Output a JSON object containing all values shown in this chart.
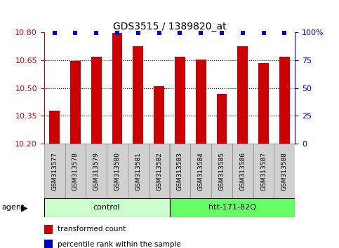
{
  "title": "GDS3515 / 1389820_at",
  "samples": [
    "GSM313577",
    "GSM313578",
    "GSM313579",
    "GSM313580",
    "GSM313581",
    "GSM313582",
    "GSM313583",
    "GSM313584",
    "GSM313585",
    "GSM313586",
    "GSM313587",
    "GSM313588"
  ],
  "values": [
    10.38,
    10.645,
    10.67,
    10.795,
    10.725,
    10.51,
    10.67,
    10.655,
    10.47,
    10.725,
    10.635,
    10.67
  ],
  "percentile_values": [
    100,
    100,
    100,
    100,
    100,
    100,
    100,
    100,
    100,
    100,
    100,
    100
  ],
  "bar_color": "#cc0000",
  "dot_color": "#0000cc",
  "ylim_left": [
    10.2,
    10.8
  ],
  "ylim_right": [
    0,
    100
  ],
  "yticks_left": [
    10.2,
    10.35,
    10.5,
    10.65,
    10.8
  ],
  "yticks_right": [
    0,
    25,
    50,
    75,
    100
  ],
  "ytick_labels_right": [
    "0",
    "25",
    "50",
    "75",
    "100%"
  ],
  "grid_values": [
    10.35,
    10.5,
    10.65
  ],
  "groups": [
    {
      "label": "control",
      "start": 0,
      "end": 5,
      "color": "#ccffcc"
    },
    {
      "label": "htt-171-82Q",
      "start": 6,
      "end": 11,
      "color": "#66ff66"
    }
  ],
  "agent_label": "agent",
  "legend": [
    {
      "label": "transformed count",
      "color": "#cc0000"
    },
    {
      "label": "percentile rank within the sample",
      "color": "#0000cc"
    }
  ],
  "bg_color": "#ffffff",
  "label_area_color": "#d0d0d0",
  "bar_width": 0.5
}
